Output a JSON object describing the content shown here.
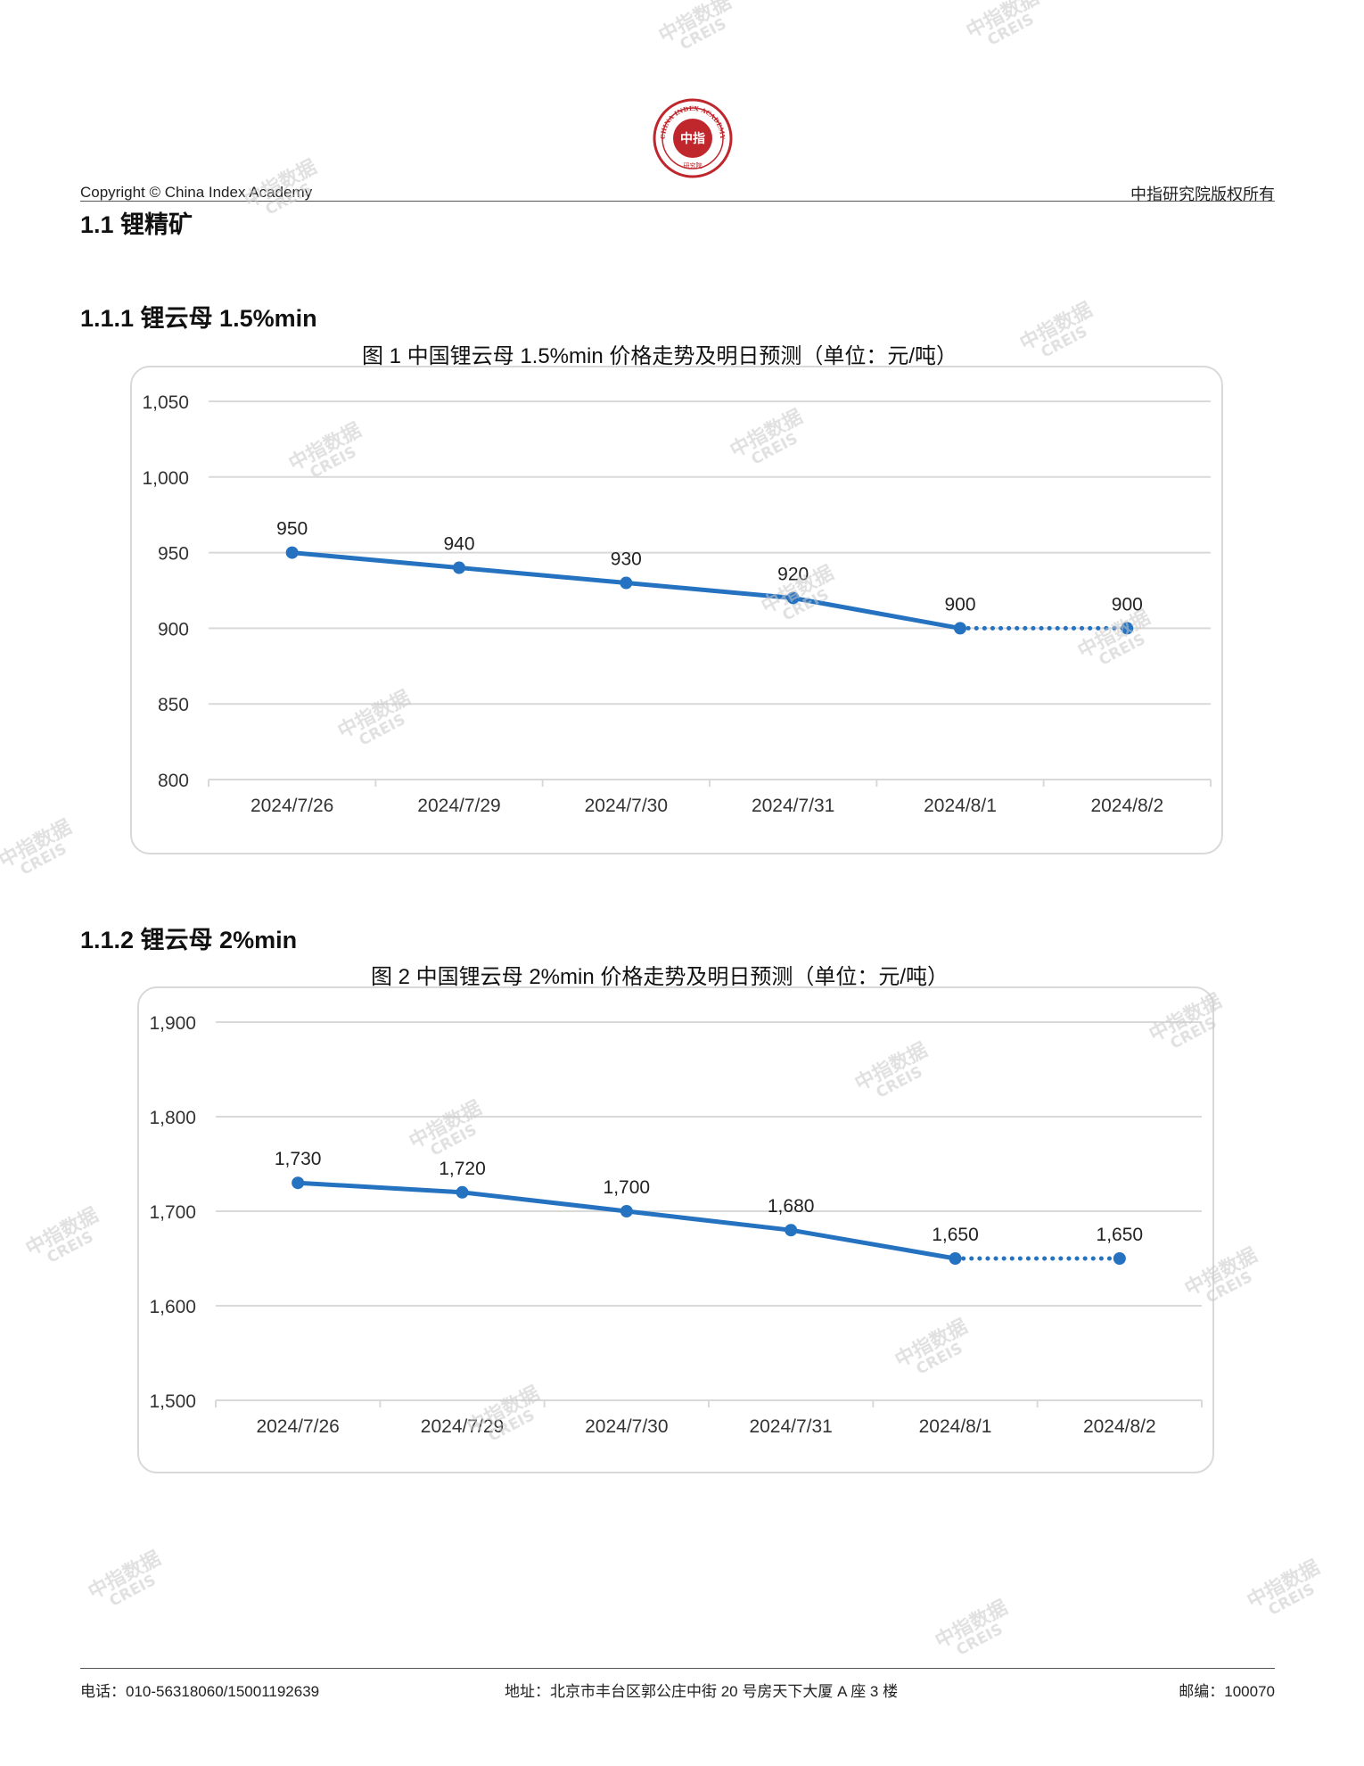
{
  "header": {
    "logo_text_top": "CHINA INDEX ACADEMY",
    "logo_text_center": "中指",
    "logo_text_bottom": "研究院",
    "copyright": "Copyright © China Index Academy",
    "rights": "中指研究院版权所有"
  },
  "sections": {
    "h1": "1.1 锂精矿",
    "h2_1": "1.1.1 锂云母 1.5%min",
    "h2_2": "1.1.2 锂云母 2%min"
  },
  "watermark": {
    "line1": "中指数据",
    "line2": "CREIS"
  },
  "colors": {
    "series": "#2472c0",
    "grid": "#d9d9d9",
    "axis_text": "#333333"
  },
  "chart_data": [
    {
      "type": "line",
      "title": "图 1 中国锂云母 1.5%min 价格走势及明日预测（单位：元/吨）",
      "categories": [
        "2024/7/26",
        "2024/7/29",
        "2024/7/30",
        "2024/7/31",
        "2024/8/1",
        "2024/8/2"
      ],
      "values": [
        950,
        940,
        930,
        920,
        900,
        900
      ],
      "data_labels": [
        "950",
        "940",
        "930",
        "920",
        "900",
        "900"
      ],
      "forecast_from_index": 4,
      "ylim": [
        800,
        1050
      ],
      "yticks": [
        800,
        850,
        900,
        950,
        1000,
        1050
      ],
      "ytick_labels": [
        "800",
        "850",
        "900",
        "950",
        "1,000",
        "1,050"
      ],
      "grid": true,
      "legend": "none"
    },
    {
      "type": "line",
      "title": "图 2 中国锂云母 2%min 价格走势及明日预测（单位：元/吨）",
      "categories": [
        "2024/7/26",
        "2024/7/29",
        "2024/7/30",
        "2024/7/31",
        "2024/8/1",
        "2024/8/2"
      ],
      "values": [
        1730,
        1720,
        1700,
        1680,
        1650,
        1650
      ],
      "data_labels": [
        "1,730",
        "1,720",
        "1,700",
        "1,680",
        "1,650",
        "1,650"
      ],
      "forecast_from_index": 4,
      "ylim": [
        1500,
        1900
      ],
      "yticks": [
        1500,
        1600,
        1700,
        1800,
        1900
      ],
      "ytick_labels": [
        "1,500",
        "1,600",
        "1,700",
        "1,800",
        "1,900"
      ],
      "grid": true,
      "legend": "none"
    }
  ],
  "footer": {
    "phone": "电话：010-56318060/15001192639",
    "address": "地址：北京市丰台区郭公庄中街 20 号房天下大厦 A 座 3 楼",
    "postcode": "邮编：100070"
  }
}
